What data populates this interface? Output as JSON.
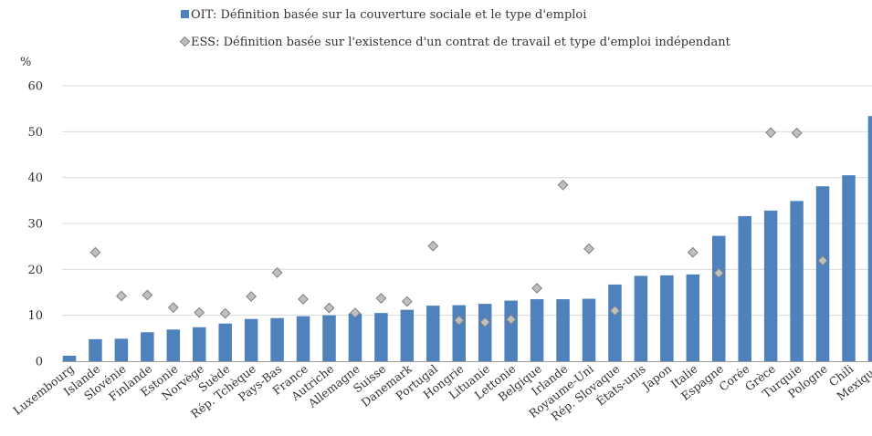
{
  "chart_data": {
    "type": "bar",
    "ylabel": "%",
    "ylim": [
      0,
      60
    ],
    "yticks": [
      0,
      10,
      20,
      30,
      40,
      50,
      60
    ],
    "grid": true,
    "legend_position": "top",
    "colors": {
      "bar": "#4f81bd",
      "marker_fill": "#bfbfbf",
      "marker_stroke": "#7f7f7f",
      "grid": "#d9d9d9"
    },
    "categories": [
      "Luxembourg",
      "Islande",
      "Slovénie",
      "Finlande",
      "Estonie",
      "Norvège",
      "Suède",
      "Rép. Tchèque",
      "Pays-Bas",
      "France",
      "Autriche",
      "Allemagne",
      "Suisse",
      "Danemark",
      "Portugal",
      "Hongrie",
      "Lituanie",
      "Lettonie",
      "Belgique",
      "Irlande",
      "Royaume-Uni",
      "Rép. Slovaque",
      "États-unis",
      "Japon",
      "Italie",
      "Espagne",
      "Corée",
      "Grèce",
      "Turquie",
      "Pologne",
      "Chili",
      "Mexique"
    ],
    "series": [
      {
        "name": "OIT: Définition basée sur la couverture sociale et le type d'emploi",
        "kind": "bar",
        "values": [
          1.2,
          4.8,
          4.9,
          6.3,
          6.9,
          7.4,
          8.2,
          9.2,
          9.4,
          9.8,
          10.0,
          10.4,
          10.5,
          11.2,
          12.1,
          12.2,
          12.5,
          13.2,
          13.5,
          13.5,
          13.6,
          16.7,
          18.6,
          18.7,
          18.9,
          27.3,
          31.6,
          32.8,
          34.9,
          38.1,
          40.5,
          53.4
        ]
      },
      {
        "name": "ESS: Définition basée sur l'existence d'un contrat de travail et type d'emploi indépendant",
        "kind": "diamond",
        "values": [
          null,
          23.7,
          14.2,
          14.4,
          11.7,
          10.6,
          10.4,
          14.1,
          19.3,
          13.5,
          11.6,
          10.5,
          13.7,
          13.0,
          25.1,
          8.9,
          8.5,
          9.1,
          15.9,
          38.4,
          24.5,
          11.0,
          null,
          null,
          23.7,
          19.2,
          null,
          49.8,
          49.7,
          21.9,
          null,
          null
        ]
      }
    ]
  }
}
